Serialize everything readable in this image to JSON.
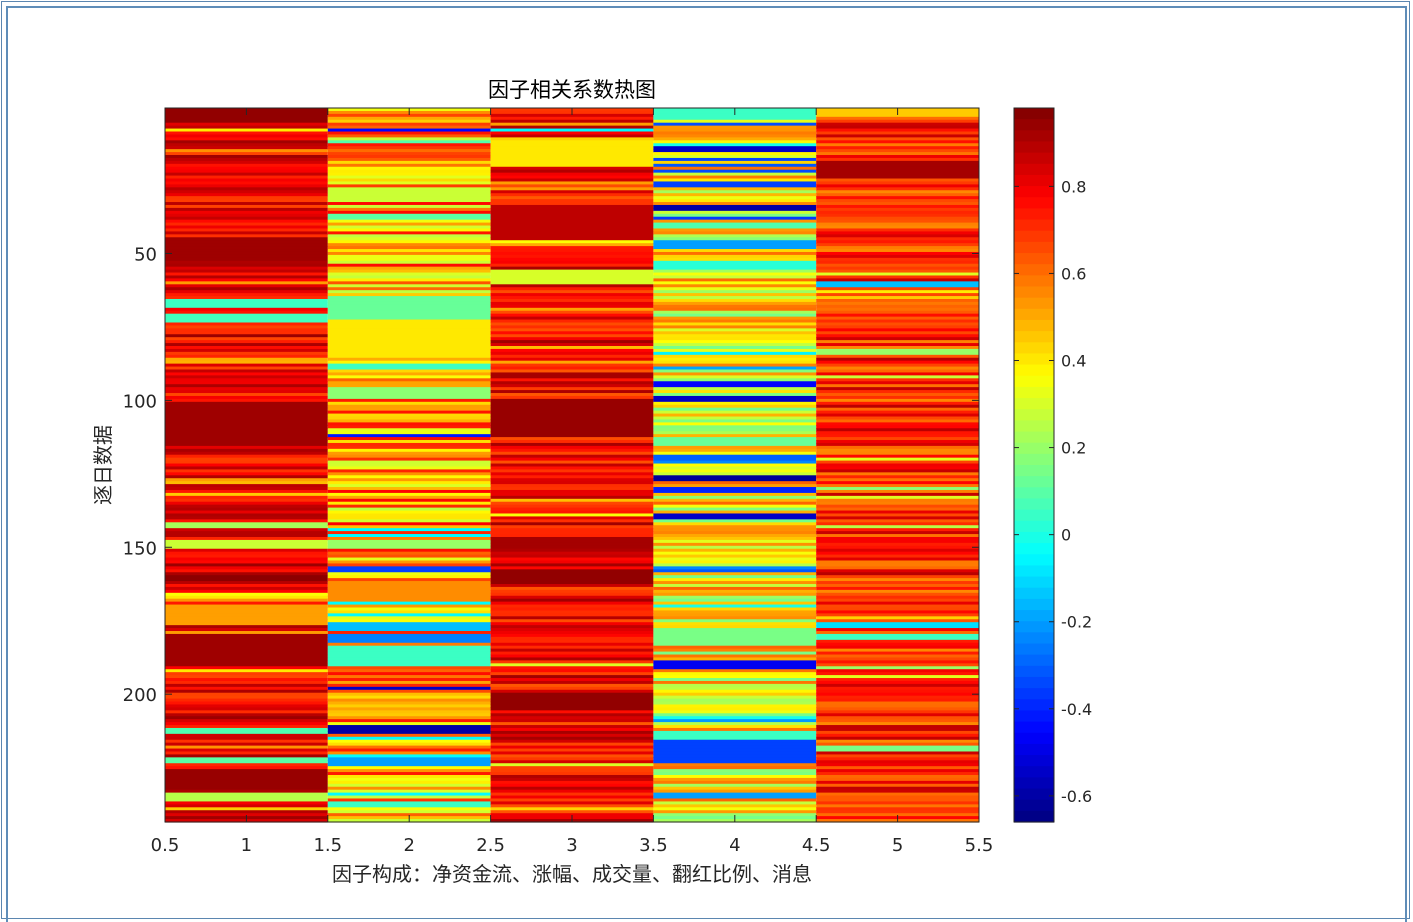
{
  "chart_data": {
    "type": "heatmap",
    "title": "因子相关系数热图",
    "xlabel": "因子构成：净资金流、涨幅、成交量、翻红比例、消息",
    "ylabel": "逐日数据",
    "x_categories": [
      1,
      2,
      3,
      4,
      5
    ],
    "xlim": [
      0.5,
      5.5
    ],
    "x_ticks": [
      "0.5",
      "1",
      "1.5",
      "2",
      "2.5",
      "3",
      "3.5",
      "4",
      "4.5",
      "5",
      "5.5"
    ],
    "ylim": [
      0.5,
      243.5
    ],
    "y_ticks": [
      "50",
      "100",
      "150",
      "200"
    ],
    "y_reversed": true,
    "colormap": "jet",
    "clim": [
      -0.66,
      0.98
    ],
    "colorbar": {
      "ticks": [
        "-0.6",
        "-0.4",
        "-0.2",
        "0",
        "0.2",
        "0.4",
        "0.6",
        "0.8"
      ],
      "location": "right"
    },
    "row_count": 243,
    "columns": [
      {
        "index": 1,
        "base": 0.8,
        "variation": 0.14,
        "min": 0.15,
        "segments": [
          {
            "from": 1,
            "to": 5,
            "value": 0.95
          },
          {
            "from": 45,
            "to": 52,
            "value": 0.93
          },
          {
            "from": 66,
            "to": 68,
            "value": 0.05
          },
          {
            "from": 71,
            "to": 73,
            "value": 0.06
          },
          {
            "from": 101,
            "to": 115,
            "value": 0.93
          },
          {
            "from": 142,
            "to": 143,
            "value": 0.22
          },
          {
            "from": 148,
            "to": 150,
            "value": 0.28
          },
          {
            "from": 160,
            "to": 161,
            "value": 0.96
          },
          {
            "from": 170,
            "to": 176,
            "value": 0.52
          },
          {
            "from": 180,
            "to": 190,
            "value": 0.93
          },
          {
            "from": 212,
            "to": 213,
            "value": 0.08
          },
          {
            "from": 222,
            "to": 223,
            "value": 0.1
          },
          {
            "from": 226,
            "to": 232,
            "value": 0.94
          },
          {
            "from": 234,
            "to": 236,
            "value": 0.25
          }
        ]
      },
      {
        "index": 2,
        "base": 0.52,
        "variation": 0.26,
        "min": -0.05,
        "segments": [
          {
            "from": 8,
            "to": 8,
            "value": -0.45
          },
          {
            "from": 28,
            "to": 32,
            "value": 0.28
          },
          {
            "from": 37,
            "to": 38,
            "value": 0.1
          },
          {
            "from": 65,
            "to": 72,
            "value": 0.12
          },
          {
            "from": 73,
            "to": 85,
            "value": 0.4
          },
          {
            "from": 88,
            "to": 89,
            "value": 0.05
          },
          {
            "from": 96,
            "to": 99,
            "value": 0.18
          },
          {
            "from": 112,
            "to": 112,
            "value": -0.42
          },
          {
            "from": 148,
            "to": 150,
            "value": 0.2
          },
          {
            "from": 157,
            "to": 158,
            "value": -0.35
          },
          {
            "from": 162,
            "to": 168,
            "value": 0.55
          },
          {
            "from": 176,
            "to": 178,
            "value": -0.15
          },
          {
            "from": 180,
            "to": 182,
            "value": -0.25
          },
          {
            "from": 184,
            "to": 190,
            "value": 0.05
          },
          {
            "from": 198,
            "to": 198,
            "value": -0.55
          },
          {
            "from": 211,
            "to": 213,
            "value": -0.6
          },
          {
            "from": 222,
            "to": 224,
            "value": -0.2
          },
          {
            "from": 237,
            "to": 238,
            "value": 0.05
          }
        ]
      },
      {
        "index": 3,
        "base": 0.78,
        "variation": 0.15,
        "min": 0.25,
        "segments": [
          {
            "from": 8,
            "to": 8,
            "value": -0.05
          },
          {
            "from": 12,
            "to": 20,
            "value": 0.4
          },
          {
            "from": 34,
            "to": 45,
            "value": 0.88
          },
          {
            "from": 56,
            "to": 60,
            "value": 0.3
          },
          {
            "from": 100,
            "to": 112,
            "value": 0.94
          },
          {
            "from": 147,
            "to": 150,
            "value": 0.92
          },
          {
            "from": 158,
            "to": 162,
            "value": 0.95
          },
          {
            "from": 200,
            "to": 205,
            "value": 0.95
          }
        ]
      },
      {
        "index": 4,
        "base": 0.38,
        "variation": 0.24,
        "min": -0.66,
        "segments": [
          {
            "from": 1,
            "to": 4,
            "value": 0.05
          },
          {
            "from": 14,
            "to": 15,
            "value": -0.55
          },
          {
            "from": 26,
            "to": 27,
            "value": -0.35
          },
          {
            "from": 34,
            "to": 35,
            "value": -0.6
          },
          {
            "from": 40,
            "to": 41,
            "value": 0.08
          },
          {
            "from": 46,
            "to": 48,
            "value": -0.2
          },
          {
            "from": 53,
            "to": 55,
            "value": 0.02
          },
          {
            "from": 94,
            "to": 95,
            "value": -0.45
          },
          {
            "from": 99,
            "to": 100,
            "value": -0.55
          },
          {
            "from": 113,
            "to": 115,
            "value": 0.12
          },
          {
            "from": 119,
            "to": 120,
            "value": -0.3
          },
          {
            "from": 126,
            "to": 127,
            "value": -0.62
          },
          {
            "from": 130,
            "to": 131,
            "value": -0.4
          },
          {
            "from": 139,
            "to": 140,
            "value": -0.55
          },
          {
            "from": 178,
            "to": 183,
            "value": 0.15
          },
          {
            "from": 189,
            "to": 191,
            "value": -0.48
          },
          {
            "from": 213,
            "to": 215,
            "value": 0.05
          },
          {
            "from": 216,
            "to": 223,
            "value": -0.35
          },
          {
            "from": 234,
            "to": 235,
            "value": -0.2
          }
        ]
      },
      {
        "index": 5,
        "base": 0.72,
        "variation": 0.17,
        "min": 0.1,
        "segments": [
          {
            "from": 1,
            "to": 3,
            "value": 0.45
          },
          {
            "from": 19,
            "to": 24,
            "value": 0.92
          },
          {
            "from": 60,
            "to": 61,
            "value": -0.15
          },
          {
            "from": 83,
            "to": 84,
            "value": 0.2
          },
          {
            "from": 143,
            "to": 143,
            "value": 0.25
          },
          {
            "from": 176,
            "to": 177,
            "value": -0.1
          },
          {
            "from": 180,
            "to": 181,
            "value": 0.05
          },
          {
            "from": 218,
            "to": 219,
            "value": 0.15
          }
        ]
      }
    ]
  }
}
